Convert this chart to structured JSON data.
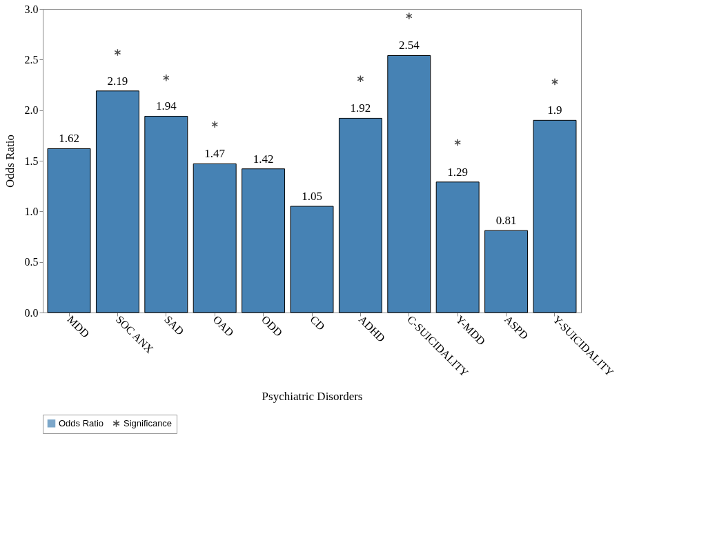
{
  "chart_data": {
    "type": "bar",
    "xlabel": "Psychiatric Disorders",
    "ylabel": "Odds Ratio",
    "categories": [
      "MDD",
      "SOC ANX",
      "SAD",
      "OAD",
      "ODD",
      "CD",
      "ADHD",
      "C-SUICIDALITY",
      "Y-MDD",
      "ASPD",
      "Y-SUICIDALITY"
    ],
    "ylim": [
      0,
      3
    ],
    "yticks": [
      {
        "value": 0,
        "label": "0.0"
      },
      {
        "value": 0.5,
        "label": "0.5"
      },
      {
        "value": 1,
        "label": "1.0"
      },
      {
        "value": 1.5,
        "label": "1.5"
      },
      {
        "value": 2,
        "label": "2.0"
      },
      {
        "value": 2.5,
        "label": "2.5"
      },
      {
        "value": 3,
        "label": "3.0"
      }
    ],
    "grid": false,
    "legend": "bottom",
    "series": [
      {
        "name": "Odds Ratio",
        "color": "#4682b4",
        "values": [
          1.62,
          2.19,
          1.94,
          1.47,
          1.42,
          1.05,
          1.92,
          2.54,
          1.29,
          0.81,
          1.9
        ],
        "value_labels": [
          "1.62",
          "2.19",
          "1.94",
          "1.47",
          "1.42",
          "1.05",
          "1.92",
          "2.54",
          "1.29",
          "0.81",
          "1.9"
        ]
      },
      {
        "name": "Significance",
        "type": "scatter",
        "marker": "cross",
        "color": "#000000",
        "x": [
          "SOC ANX",
          "SAD",
          "OAD",
          "ADHD",
          "C-SUICIDALITY",
          "Y-MDD",
          "Y-SUICIDALITY"
        ],
        "values": [
          2.57,
          2.32,
          1.86,
          2.31,
          2.93,
          1.68,
          2.28
        ]
      }
    ]
  }
}
